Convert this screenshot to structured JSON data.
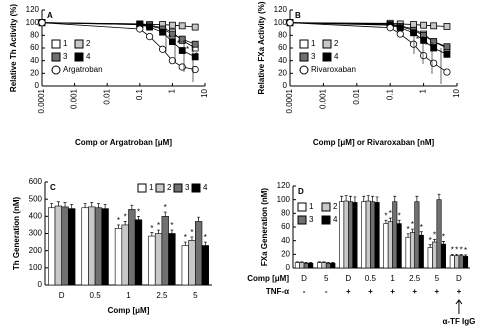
{
  "chart_data": [
    {
      "type": "line",
      "panel": "A",
      "y_label": "Relative Th Activity (%)",
      "x_label": "Comp or Argatroban [μM]",
      "log_x": true,
      "x": [
        0.0001,
        0.1,
        0.2,
        0.5,
        1,
        2,
        5
      ],
      "xlim": [
        0.0001,
        10
      ],
      "xticks": [
        0.0001,
        0.001,
        0.01,
        0.1,
        1,
        10
      ],
      "ylim": [
        0,
        120
      ],
      "yticks": [
        0,
        20,
        40,
        60,
        80,
        100,
        120
      ],
      "grid": false,
      "series": [
        {
          "name": "1",
          "color": "#ffffff",
          "marker": "square",
          "values": [
            100,
            98,
            96,
            92,
            85,
            72,
            60
          ]
        },
        {
          "name": "2",
          "color": "#c8c8c8",
          "marker": "square",
          "values": [
            100,
            98,
            97,
            97,
            96,
            95,
            93
          ]
        },
        {
          "name": "3",
          "color": "#707070",
          "marker": "square",
          "values": [
            100,
            97,
            95,
            90,
            82,
            74,
            66
          ]
        },
        {
          "name": "4",
          "color": "#000000",
          "marker": "square",
          "values": [
            100,
            97,
            93,
            85,
            70,
            56,
            46
          ]
        },
        {
          "name": "Argatroban",
          "color": "#ffffff",
          "marker": "circle",
          "values": [
            100,
            90,
            78,
            58,
            40,
            30,
            26
          ]
        }
      ],
      "annotations": [
        "*",
        "*",
        "*",
        "*"
      ]
    },
    {
      "type": "line",
      "panel": "B",
      "y_label": "Relative FXa Activity (%)",
      "x_label": "Comp [μM] or Rivaroxaban [nM]",
      "log_x": true,
      "x": [
        0.0001,
        0.1,
        0.2,
        0.5,
        1,
        2,
        5
      ],
      "xlim": [
        0.0001,
        10
      ],
      "xticks": [
        0.0001,
        0.001,
        0.01,
        0.1,
        1,
        10
      ],
      "ylim": [
        0,
        120
      ],
      "yticks": [
        0,
        20,
        40,
        60,
        80,
        100,
        120
      ],
      "grid": false,
      "series": [
        {
          "name": "1",
          "color": "#ffffff",
          "marker": "square",
          "values": [
            100,
            98,
            95,
            90,
            82,
            70,
            60
          ]
        },
        {
          "name": "2",
          "color": "#c8c8c8",
          "marker": "square",
          "values": [
            100,
            99,
            98,
            97,
            96,
            95,
            94
          ]
        },
        {
          "name": "3",
          "color": "#707070",
          "marker": "square",
          "values": [
            100,
            97,
            94,
            88,
            80,
            70,
            62
          ]
        },
        {
          "name": "4",
          "color": "#000000",
          "marker": "square",
          "values": [
            100,
            96,
            92,
            84,
            72,
            60,
            50
          ]
        },
        {
          "name": "Rivaroxaban",
          "color": "#ffffff",
          "marker": "circle",
          "values": [
            100,
            92,
            82,
            66,
            48,
            36,
            22
          ]
        }
      ],
      "annotations": [
        "*",
        "*",
        "*",
        "*"
      ]
    },
    {
      "type": "bar",
      "panel": "C",
      "y_label": "Th Generation (nM)",
      "x_label": "Comp [μM]",
      "categories": [
        "D",
        "0.5",
        "1",
        "2.5",
        "5"
      ],
      "ylim": [
        0,
        600
      ],
      "yticks": [
        0,
        100,
        200,
        300,
        400,
        500,
        600
      ],
      "grid": false,
      "series": [
        {
          "name": "1",
          "color": "#ffffff",
          "values": [
            450,
            450,
            330,
            285,
            230
          ],
          "errors": [
            25,
            25,
            20,
            20,
            20
          ],
          "significance": [
            null,
            null,
            "*",
            "*",
            "*"
          ]
        },
        {
          "name": "2",
          "color": "#c8c8c8",
          "values": [
            460,
            455,
            350,
            300,
            260
          ],
          "errors": [
            25,
            25,
            20,
            20,
            20
          ],
          "significance": [
            null,
            null,
            "*",
            "*",
            "*"
          ]
        },
        {
          "name": "3",
          "color": "#707070",
          "values": [
            455,
            450,
            440,
            400,
            370
          ],
          "errors": [
            25,
            25,
            25,
            25,
            25
          ],
          "significance": [
            null,
            null,
            null,
            "*",
            null
          ]
        },
        {
          "name": "4",
          "color": "#000000",
          "values": [
            445,
            445,
            380,
            300,
            230
          ],
          "errors": [
            25,
            25,
            20,
            20,
            20
          ],
          "significance": [
            null,
            null,
            "*",
            "*",
            "*"
          ]
        }
      ]
    },
    {
      "type": "bar",
      "panel": "D",
      "y_label": "FXa Generation (nM)",
      "categories": [
        "D",
        "5",
        "D",
        "0.5",
        "1",
        "2.5",
        "5",
        "D"
      ],
      "row_labels": [
        "Comp [μM]",
        "TNF-α"
      ],
      "tnf": [
        "-",
        "-",
        "+",
        "+",
        "+",
        "+",
        "+",
        "+"
      ],
      "annotation": "α-TF IgG",
      "ylim": [
        0,
        120
      ],
      "yticks": [
        0,
        20,
        40,
        60,
        80,
        100,
        120
      ],
      "grid": false,
      "series": [
        {
          "name": "1",
          "color": "#ffffff",
          "values": [
            8,
            8,
            97,
            97,
            65,
            45,
            30,
            18
          ],
          "errors": [
            1,
            1,
            8,
            8,
            5,
            5,
            4,
            2
          ],
          "significance": [
            null,
            null,
            null,
            null,
            "*",
            "*",
            "*",
            "*"
          ]
        },
        {
          "name": "2",
          "color": "#c8c8c8",
          "values": [
            8,
            8,
            98,
            98,
            68,
            52,
            38,
            18
          ],
          "errors": [
            1,
            1,
            8,
            8,
            5,
            5,
            4,
            2
          ],
          "significance": [
            null,
            null,
            null,
            null,
            "*",
            "*",
            "*",
            "*"
          ]
        },
        {
          "name": "3",
          "color": "#707070",
          "values": [
            7,
            7,
            97,
            97,
            97,
            97,
            100,
            18
          ],
          "errors": [
            1,
            1,
            8,
            8,
            8,
            8,
            8,
            2
          ],
          "significance": [
            null,
            null,
            null,
            null,
            null,
            null,
            null,
            "*"
          ]
        },
        {
          "name": "4",
          "color": "#000000",
          "values": [
            7,
            7,
            96,
            96,
            65,
            48,
            35,
            17
          ],
          "errors": [
            1,
            1,
            8,
            8,
            5,
            5,
            4,
            2
          ],
          "significance": [
            null,
            null,
            null,
            null,
            "*",
            "*",
            "*",
            "*"
          ]
        }
      ]
    }
  ]
}
